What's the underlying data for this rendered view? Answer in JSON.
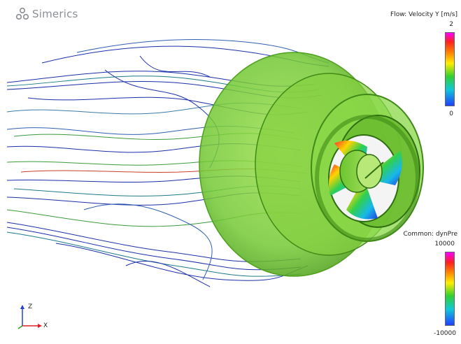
{
  "app": {
    "logo_text": "Simerics",
    "logo_icon": "molecule-logo-icon"
  },
  "legend_velocity": {
    "title": "Flow: Velocity Y [m/s]",
    "max": "2",
    "min": "0"
  },
  "legend_pressure": {
    "title": "Common: dynPre",
    "max": "10000",
    "min": "-10000"
  },
  "axes": {
    "z_label": "Z",
    "x_label": "X"
  },
  "colors": {
    "shroud": "#7cd33a",
    "streamline_blue": "#1b2fa8",
    "streamline_teal": "#1d7a8a",
    "streamline_green": "#3c9a3c",
    "streamline_red": "#c8402a"
  }
}
